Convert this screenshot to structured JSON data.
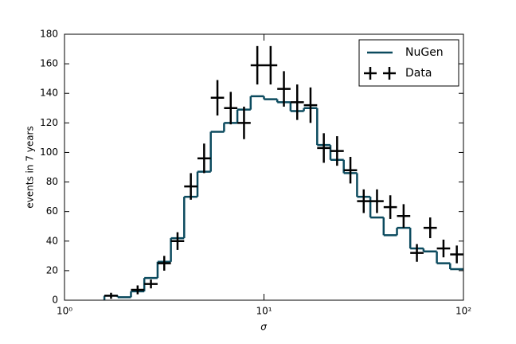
{
  "chart_data": {
    "type": "histogram",
    "xlabel": "σ",
    "ylabel": "events in 7 years",
    "xscale": "log",
    "bins": [
      1.585,
      1.848,
      2.154,
      2.512,
      2.929,
      3.415,
      3.981,
      4.642,
      5.412,
      6.31,
      7.356,
      8.577,
      10,
      11.66,
      13.59,
      15.85,
      18.48,
      21.54,
      25.12,
      29.29,
      34.15,
      39.81,
      46.42,
      54.12,
      63.1,
      73.56,
      85.77,
      100
    ],
    "series": [
      {
        "name": "NuGen",
        "color": "#0b4a5e",
        "style": "step",
        "values": [
          3,
          2,
          6,
          15,
          26,
          42,
          70,
          87,
          114,
          120,
          129,
          138,
          136,
          134,
          128,
          130,
          105,
          95,
          86,
          70,
          56,
          44,
          49,
          35,
          33,
          25,
          21
        ]
      },
      {
        "name": "Data",
        "color": "#000000",
        "style": "errorbar",
        "values": [
          3,
          null,
          7,
          11,
          25,
          40,
          77,
          96,
          137,
          130,
          120,
          159,
          159,
          143,
          134,
          132,
          103,
          101,
          88,
          67,
          67,
          63,
          57,
          32,
          49,
          35,
          31
        ],
        "errors": [
          2,
          null,
          3,
          3,
          5,
          6,
          9,
          10,
          12,
          11,
          11,
          13,
          13,
          12,
          12,
          12,
          10,
          10,
          9,
          8,
          8,
          8,
          8,
          6,
          7,
          6,
          6
        ]
      }
    ],
    "xlim": [
      1,
      100
    ],
    "xticks": [
      {
        "value": 1,
        "label": "10⁰"
      },
      {
        "value": 10,
        "label": "10¹"
      },
      {
        "value": 100,
        "label": "10²"
      }
    ],
    "ylim": [
      0,
      180
    ],
    "yticks": [
      0,
      20,
      40,
      60,
      80,
      100,
      120,
      140,
      160,
      180
    ],
    "legend": "upper right"
  }
}
